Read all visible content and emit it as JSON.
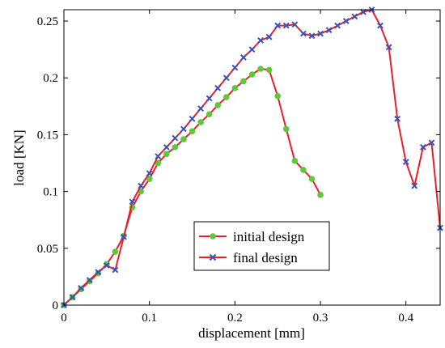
{
  "chart_data": {
    "type": "line",
    "title": "",
    "xlabel": "displacement [mm]",
    "ylabel": "load [KN]",
    "xlim": [
      0,
      0.44
    ],
    "ylim": [
      0,
      0.26
    ],
    "grid": false,
    "legend_position": "lower-center",
    "xticks": [
      0,
      0.1,
      0.2,
      0.3,
      0.4
    ],
    "xtick_labels": [
      "0",
      "0.1",
      "0.2",
      "0.3",
      "0.4"
    ],
    "yticks": [
      0,
      0.05,
      0.1,
      0.15,
      0.2,
      0.25
    ],
    "ytick_labels": [
      "0",
      "0.05",
      "0.1",
      "0.15",
      "0.2",
      "0.25"
    ],
    "line_color": "#e8202a",
    "series": [
      {
        "name": "initial design",
        "marker": "circle",
        "marker_color": "#5cc83a",
        "x": [
          0,
          0.01,
          0.02,
          0.03,
          0.04,
          0.05,
          0.06,
          0.07,
          0.08,
          0.09,
          0.1,
          0.11,
          0.12,
          0.13,
          0.14,
          0.15,
          0.16,
          0.17,
          0.18,
          0.19,
          0.2,
          0.21,
          0.22,
          0.23,
          0.24,
          0.25,
          0.26,
          0.27,
          0.28,
          0.29,
          0.3
        ],
        "y": [
          0,
          0.007,
          0.014,
          0.021,
          0.028,
          0.036,
          0.047,
          0.061,
          0.086,
          0.1,
          0.111,
          0.125,
          0.133,
          0.139,
          0.146,
          0.153,
          0.161,
          0.168,
          0.176,
          0.183,
          0.191,
          0.197,
          0.203,
          0.208,
          0.207,
          0.184,
          0.155,
          0.127,
          0.119,
          0.111,
          0.097
        ]
      },
      {
        "name": "final design",
        "marker": "x",
        "marker_color": "#3a52b8",
        "x": [
          0,
          0.01,
          0.02,
          0.03,
          0.04,
          0.05,
          0.06,
          0.07,
          0.08,
          0.09,
          0.1,
          0.11,
          0.12,
          0.13,
          0.14,
          0.15,
          0.16,
          0.17,
          0.18,
          0.19,
          0.2,
          0.21,
          0.22,
          0.23,
          0.24,
          0.25,
          0.26,
          0.27,
          0.28,
          0.29,
          0.3,
          0.31,
          0.32,
          0.33,
          0.34,
          0.35,
          0.36,
          0.37,
          0.38,
          0.39,
          0.4,
          0.41,
          0.42,
          0.43,
          0.44
        ],
        "y": [
          0,
          0.007,
          0.015,
          0.022,
          0.029,
          0.035,
          0.031,
          0.06,
          0.091,
          0.105,
          0.116,
          0.131,
          0.139,
          0.147,
          0.155,
          0.164,
          0.173,
          0.182,
          0.191,
          0.2,
          0.209,
          0.218,
          0.225,
          0.233,
          0.236,
          0.246,
          0.246,
          0.247,
          0.239,
          0.237,
          0.239,
          0.242,
          0.246,
          0.25,
          0.254,
          0.258,
          0.26,
          0.246,
          0.227,
          0.164,
          0.126,
          0.105,
          0.139,
          0.143,
          0.068
        ]
      }
    ]
  }
}
